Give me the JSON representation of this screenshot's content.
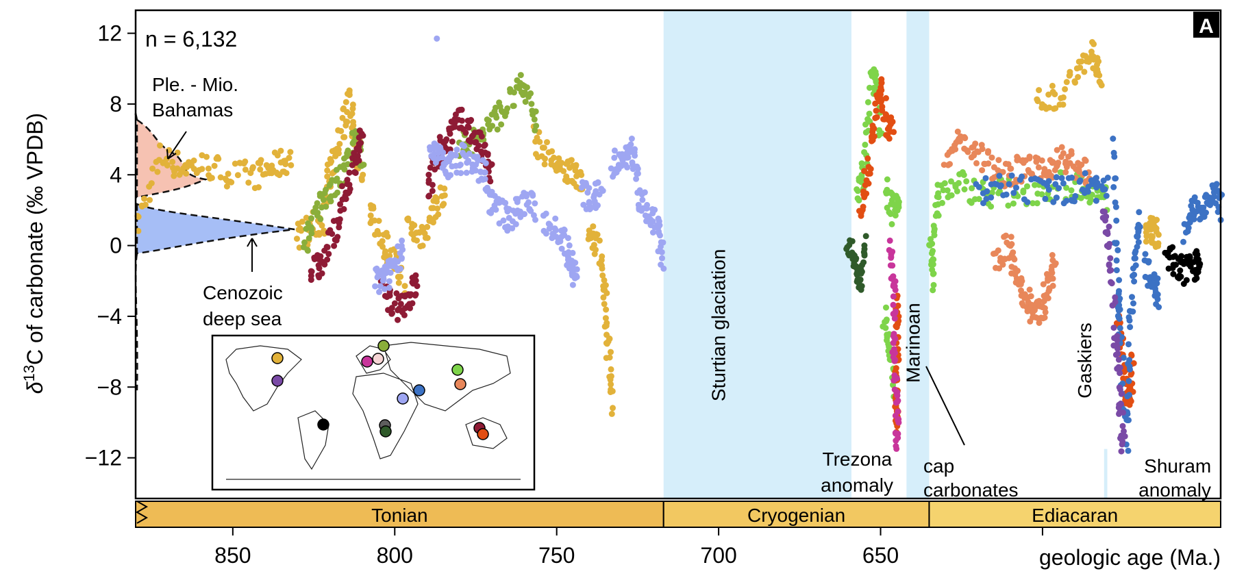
{
  "chart_data": {
    "type": "scatter",
    "panel_label": "A",
    "sample_count_label": "n = 6,132",
    "ylabel_prefix": "δ",
    "ylabel_sup": "13",
    "ylabel_rest": "C of carbonate (‰ VPDB)",
    "xlabel": "geologic age (Ma.)",
    "xlim": [
      880,
      545
    ],
    "ylim": [
      -14.3,
      13.3
    ],
    "x_ticks": [
      850,
      800,
      750,
      700,
      650,
      600
    ],
    "x_tick_labels": [
      "850",
      "800",
      "750",
      "700",
      "650",
      ""
    ],
    "y_ticks": [
      12,
      8,
      4,
      0,
      -4,
      -8,
      -12
    ],
    "y_tick_labels": [
      "12",
      "8",
      "4",
      "0",
      "−4",
      "−8",
      "−12"
    ],
    "periods": [
      {
        "name": "Tonian",
        "from": 880,
        "to": 717,
        "color": "#EEBB55"
      },
      {
        "name": "Cryogenian",
        "from": 717,
        "to": 635,
        "color": "#F2C861"
      },
      {
        "name": "Ediacaran",
        "from": 635,
        "to": 545,
        "color": "#F5D36E"
      }
    ],
    "glaciations": [
      {
        "name": "Sturtian glaciation",
        "from": 717,
        "to": 659
      },
      {
        "name": "Marinoan",
        "from": 642,
        "to": 635
      },
      {
        "name": "Gaskiers",
        "from": 581,
        "to": 580
      }
    ],
    "annotations": {
      "bahamas_1": "Ple. - Mio.",
      "bahamas_2": "Bahamas",
      "cenozoic_1": "Cenozoic",
      "cenozoic_2": "deep sea",
      "trezona_1": "Trezona",
      "trezona_2": "anomaly",
      "cap_1": "cap",
      "cap_2": "carbonates",
      "shuram_1": "Shuram",
      "shuram_2": "anomaly"
    },
    "series": [
      {
        "color": "#E2B23A",
        "segments": [
          [
            [
              880,
              1
            ],
            [
              872,
              5
            ],
            [
              866,
              4.5
            ],
            [
              858,
              4.5
            ],
            [
              850,
              4
            ],
            [
              842,
              4
            ],
            [
              836,
              4.5
            ],
            [
              832,
              5
            ]
          ],
          [
            [
              830,
              0.5
            ],
            [
              826,
              1
            ],
            [
              822,
              1.5
            ],
            [
              820,
              4
            ],
            [
              817,
              6
            ],
            [
              814,
              8.5
            ],
            [
              812,
              6
            ],
            [
              810,
              4
            ]
          ],
          [
            [
              808,
              2
            ],
            [
              804,
              0.5
            ],
            [
              800,
              -1
            ],
            [
              797,
              -2
            ]
          ],
          [
            [
              796,
              1
            ],
            [
              792,
              0.5
            ],
            [
              788,
              2
            ],
            [
              784,
              3
            ]
          ],
          [
            [
              757,
              6
            ],
            [
              752,
              5
            ],
            [
              748,
              4
            ],
            [
              745,
              4.5
            ],
            [
              742,
              3
            ]
          ],
          [
            [
              740,
              1
            ],
            [
              737,
              0
            ],
            [
              735,
              -3
            ],
            [
              734,
              -6
            ],
            [
              733,
              -9
            ]
          ],
          [
            [
              602,
              8
            ],
            [
              595,
              8.5
            ],
            [
              588,
              10
            ],
            [
              584,
              11
            ],
            [
              582,
              9
            ]
          ],
          [
            [
              568,
              1
            ],
            [
              566,
              1
            ],
            [
              564,
              0.5
            ]
          ]
        ]
      },
      {
        "color": "#8AAE3A",
        "segments": [
          [
            [
              828,
              0
            ],
            [
              824,
              2
            ],
            [
              820,
              3
            ],
            [
              816,
              4
            ],
            [
              812,
              6
            ],
            [
              810,
              5
            ]
          ],
          [
            [
              780,
              5.5
            ],
            [
              775,
              6
            ],
            [
              770,
              7
            ],
            [
              765,
              8
            ],
            [
              760,
              9
            ],
            [
              756,
              7
            ]
          ]
        ]
      },
      {
        "color": "#8E1B35",
        "segments": [
          [
            [
              826,
              -1.5
            ],
            [
              822,
              -1
            ],
            [
              818,
              1
            ],
            [
              815,
              3
            ],
            [
              812,
              5
            ],
            [
              810,
              6
            ]
          ],
          [
            [
              804,
              -2.5
            ],
            [
              800,
              -3.5
            ],
            [
              796,
              -3
            ],
            [
              793,
              -2
            ]
          ],
          [
            [
              790,
              3
            ],
            [
              787,
              5
            ],
            [
              784,
              6
            ],
            [
              780,
              7
            ],
            [
              776,
              6.5
            ],
            [
              772,
              5
            ],
            [
              770,
              4
            ]
          ]
        ]
      },
      {
        "color": "#9EA6F2",
        "segments": [
          [
            [
              806,
              -2
            ],
            [
              803,
              -2
            ],
            [
              800,
              -1
            ],
            [
              797,
              0
            ]
          ],
          [
            [
              789,
              5
            ],
            [
              786,
              5
            ],
            [
              783,
              4.5
            ],
            [
              779,
              5
            ],
            [
              775,
              4.5
            ],
            [
              771,
              4
            ]
          ],
          [
            [
              772,
              3
            ],
            [
              768,
              2
            ],
            [
              764,
              1.5
            ],
            [
              760,
              2.5
            ],
            [
              756,
              2
            ]
          ],
          [
            [
              754,
              1.5
            ],
            [
              750,
              1
            ],
            [
              747,
              0
            ],
            [
              745,
              -1
            ],
            [
              744,
              -2
            ]
          ],
          [
            [
              742,
              3
            ],
            [
              739,
              2.5
            ],
            [
              736,
              3
            ]
          ],
          [
            [
              733,
              4.5
            ],
            [
              730,
              5
            ],
            [
              727,
              5.5
            ],
            [
              725,
              4
            ]
          ],
          [
            [
              725,
              2.5
            ],
            [
              722,
              2
            ],
            [
              719,
              1
            ],
            [
              717,
              -1
            ]
          ],
          [
            [
              787,
              11.7
            ]
          ]
        ]
      },
      {
        "color": "#7ED44A",
        "segments": [
          [
            [
              657,
              3
            ],
            [
              655,
              4
            ],
            [
              653,
              9
            ],
            [
              651,
              9.5
            ],
            [
              650,
              6
            ]
          ],
          [
            [
              648,
              3
            ],
            [
              646,
              2
            ],
            [
              644,
              3
            ]
          ],
          [
            [
              649,
              -4
            ],
            [
              647,
              -6
            ],
            [
              646,
              -8
            ]
          ],
          [
            [
              634,
              -2
            ],
            [
              634.5,
              0
            ],
            [
              632,
              3
            ],
            [
              626,
              3.5
            ],
            [
              618,
              3
            ],
            [
              610,
              3
            ],
            [
              600,
              3.2
            ],
            [
              590,
              3.5
            ],
            [
              585,
              3.2
            ],
            [
              580,
              2.5
            ]
          ]
        ]
      },
      {
        "color": "#E24E13",
        "segments": [
          [
            [
              656,
              2
            ],
            [
              654,
              4
            ],
            [
              652,
              7
            ],
            [
              650,
              9
            ],
            [
              648,
              7
            ],
            [
              646,
              6
            ]
          ],
          [
            [
              645,
              -3
            ],
            [
              645,
              -5
            ],
            [
              645,
              -7
            ],
            [
              645,
              -9
            ],
            [
              645,
              -10
            ]
          ],
          [
            [
              577,
              -4
            ],
            [
              575,
              -6
            ],
            [
              574,
              -8
            ],
            [
              573,
              -9
            ],
            [
              572,
              -6
            ]
          ]
        ]
      },
      {
        "color": "#E8875A",
        "segments": [
          [
            [
              630,
              5
            ],
            [
              625,
              6
            ],
            [
              620,
              5
            ],
            [
              615,
              4.5
            ],
            [
              610,
              4
            ],
            [
              605,
              4.5
            ],
            [
              600,
              4
            ],
            [
              595,
              5
            ],
            [
              590,
              4.5
            ],
            [
              585,
              4
            ]
          ],
          [
            [
              615,
              -1
            ],
            [
              610,
              0
            ],
            [
              608,
              -2
            ],
            [
              605,
              -3
            ],
            [
              603,
              -4
            ],
            [
              600,
              -3.5
            ],
            [
              598,
              -2
            ],
            [
              596,
              -1
            ]
          ]
        ]
      },
      {
        "color": "#3C72C4",
        "segments": [
          [
            [
              578,
              6
            ],
            [
              577,
              -2
            ],
            [
              576,
              -5
            ],
            [
              574,
              -11
            ],
            [
              573,
              -4
            ],
            [
              571,
              0
            ],
            [
              570,
              1.5
            ]
          ],
          [
            [
              568,
              -1
            ],
            [
              566,
              -2
            ],
            [
              564,
              -3
            ]
          ],
          [
            [
              556,
              1
            ],
            [
              553,
              2
            ],
            [
              550,
              2.5
            ],
            [
              547,
              3
            ],
            [
              545,
              2
            ]
          ],
          [
            [
              620,
              3
            ],
            [
              612,
              3.2
            ],
            [
              600,
              3
            ],
            [
              592,
              3.2
            ],
            [
              585,
              3.5
            ],
            [
              580,
              3
            ]
          ]
        ]
      },
      {
        "color": "#C8359B",
        "segments": [
          [
            [
              647,
              0
            ],
            [
              646,
              -2
            ],
            [
              646,
              -6
            ],
            [
              645,
              -9
            ],
            [
              645,
              -12
            ]
          ]
        ]
      },
      {
        "color": "#7A4AA6",
        "segments": [
          [
            [
              581,
              2
            ],
            [
              579,
              -1
            ],
            [
              577,
              -6
            ],
            [
              576,
              -9
            ],
            [
              575,
              -12
            ]
          ]
        ]
      },
      {
        "color": "#2F5A2A",
        "segments": [
          [
            [
              660,
              0
            ],
            [
              658,
              -1
            ],
            [
              656,
              -2
            ],
            [
              655,
              0
            ]
          ]
        ]
      },
      {
        "color": "#000000",
        "segments": [
          [
            [
              562,
              -0.5
            ],
            [
              559,
              -1
            ],
            [
              556,
              -1.5
            ],
            [
              553,
              -1.2
            ],
            [
              551,
              -0.8
            ]
          ]
        ]
      }
    ]
  }
}
